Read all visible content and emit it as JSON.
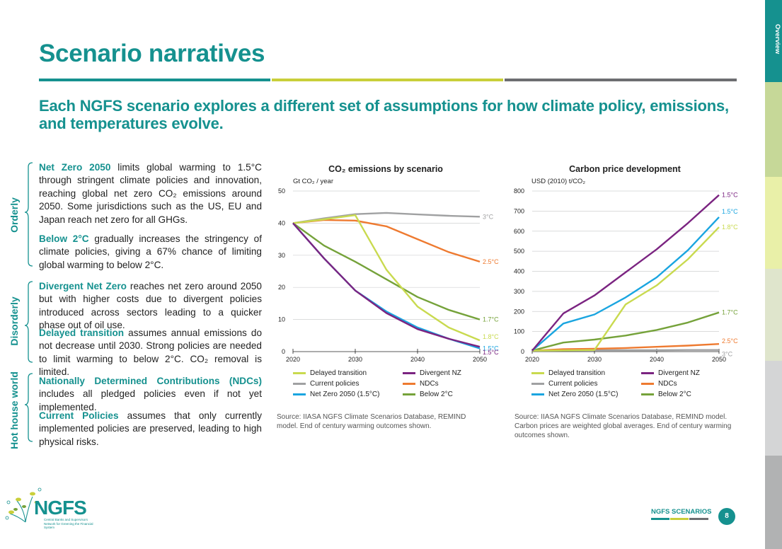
{
  "page": {
    "title": "Scenario narratives",
    "subtitle": "Each NGFS scenario explores a different set of assumptions for how climate policy, emissions, and temperatures evolve.",
    "side_tab": "Overview",
    "footer_label": "NGFS SCENARIOS",
    "page_number": "8",
    "logo": "NGFS",
    "logo_tagline": "Central Banks and Supervisors Network for Greening the Financial System",
    "colors": {
      "teal": "#15918f",
      "lime": "#c9cf3a",
      "grey": "#6d6e71"
    }
  },
  "groups": [
    {
      "label": "Orderly",
      "paragraphs": [
        {
          "lead": "Net Zero 2050",
          "text": " limits global warming to 1.5°C through stringent climate policies and innovation, reaching global net zero CO₂ emissions around 2050. Some jurisdictions such as the US, EU and Japan reach net zero for all GHGs."
        },
        {
          "lead": "Below 2°C",
          "text": " gradually increases the stringency of climate policies, giving a 67% chance of limiting global warming to below 2°C."
        }
      ]
    },
    {
      "label": "Disorderly",
      "paragraphs": [
        {
          "lead": "Divergent Net Zero",
          "text": " reaches net zero around 2050 but with higher costs due to divergent policies introduced across sectors leading to a quicker phase out of oil use."
        },
        {
          "lead": "Delayed transition",
          "text": " assumes annual emissions do not decrease until 2030. Strong policies are needed to limit warming to below 2°C. CO₂ removal is limited."
        }
      ]
    },
    {
      "label": "Hot house world",
      "paragraphs": [
        {
          "lead": "Nationally Determined Contributions (NDCs)",
          "text": " includes all pledged policies even if not yet implemented."
        },
        {
          "lead": "Current Policies",
          "text": " assumes that only currently implemented policies are preserved, leading to high physical risks."
        }
      ]
    }
  ],
  "legend": [
    {
      "name": "Delayed transition",
      "color": "#c9da4f"
    },
    {
      "name": "Divergent NZ",
      "color": "#7b2481"
    },
    {
      "name": "Current policies",
      "color": "#a0a1a2"
    },
    {
      "name": "NDCs",
      "color": "#ee7a30"
    },
    {
      "name": "Net Zero 2050 (1.5°C)",
      "color": "#1aa5e0"
    },
    {
      "name": "Below 2°C",
      "color": "#75a23a"
    }
  ],
  "chart_data": [
    {
      "type": "line",
      "title": "CO₂ emissions by scenario",
      "ylabel": "Gt CO₂ / year",
      "x": [
        2020,
        2025,
        2030,
        2035,
        2040,
        2045,
        2050
      ],
      "xticks": [
        "2020",
        "2030",
        "2040",
        "2050"
      ],
      "yticks": [
        "0",
        "10",
        "20",
        "30",
        "40",
        "50"
      ],
      "xlim": [
        2020,
        2050
      ],
      "ylim": [
        0,
        50
      ],
      "grid": true,
      "series": [
        {
          "name": "Current policies",
          "color": "#a0a1a2",
          "values": [
            40,
            41.5,
            42.8,
            43.2,
            42.7,
            42.3,
            42.0
          ],
          "end_label": "3°C"
        },
        {
          "name": "NDCs",
          "color": "#ee7a30",
          "values": [
            40,
            41.0,
            40.8,
            39.0,
            35.0,
            31.0,
            28.0
          ],
          "end_label": "2.5°C"
        },
        {
          "name": "Below 2°C",
          "color": "#75a23a",
          "values": [
            40,
            33.0,
            28.0,
            22.5,
            17.0,
            13.0,
            10.0
          ],
          "end_label": "1.7°C"
        },
        {
          "name": "Delayed transition",
          "color": "#c9da4f",
          "values": [
            40,
            41.2,
            42.5,
            25.5,
            14.0,
            7.5,
            3.5
          ],
          "end_label": "1.8°C"
        },
        {
          "name": "Net Zero 2050 (1.5°C)",
          "color": "#1aa5e0",
          "values": [
            40,
            29.0,
            19.0,
            12.5,
            7.5,
            4.0,
            1.0
          ],
          "end_label": "1.5°C"
        },
        {
          "name": "Divergent NZ",
          "color": "#7b2481",
          "values": [
            40,
            29.0,
            19.0,
            12.0,
            7.0,
            4.0,
            1.5
          ],
          "end_label": "1.5°C"
        }
      ],
      "source": "Source: IIASA NGFS Climate Scenarios Database, REMIND model. End of century warming outcomes shown."
    },
    {
      "type": "line",
      "title": "Carbon price development",
      "ylabel": "USD (2010) t/CO₂",
      "x": [
        2020,
        2025,
        2030,
        2035,
        2040,
        2045,
        2050
      ],
      "xticks": [
        "2020",
        "2030",
        "2040",
        "2050"
      ],
      "yticks": [
        "0",
        "100",
        "200",
        "300",
        "400",
        "500",
        "600",
        "700",
        "800"
      ],
      "xlim": [
        2020,
        2050
      ],
      "ylim": [
        0,
        800
      ],
      "grid": true,
      "series": [
        {
          "name": "Current policies",
          "color": "#a0a1a2",
          "values": [
            5,
            6,
            7,
            7,
            7,
            8,
            8
          ],
          "end_label": "3°C"
        },
        {
          "name": "NDCs",
          "color": "#ee7a30",
          "values": [
            5,
            12,
            14,
            18,
            24,
            30,
            38
          ],
          "end_label": "2.5°C"
        },
        {
          "name": "Below 2°C",
          "color": "#75a23a",
          "values": [
            5,
            45,
            60,
            80,
            108,
            145,
            195
          ],
          "end_label": "1.7°C"
        },
        {
          "name": "Delayed transition",
          "color": "#c9da4f",
          "values": [
            5,
            6,
            8,
            235,
            330,
            460,
            620
          ],
          "end_label": "1.8°C"
        },
        {
          "name": "Net Zero 2050 (1.5°C)",
          "color": "#1aa5e0",
          "values": [
            5,
            140,
            185,
            270,
            370,
            505,
            670
          ],
          "end_label": "1.5°C"
        },
        {
          "name": "Divergent NZ",
          "color": "#7b2481",
          "values": [
            5,
            190,
            280,
            395,
            510,
            640,
            780
          ],
          "end_label": "1.5°C"
        }
      ],
      "source": "Source: IIASA NGFS Climate Scenarios Database, REMIND model. Carbon prices are weighted global averages. End of century warming outcomes shown."
    }
  ]
}
